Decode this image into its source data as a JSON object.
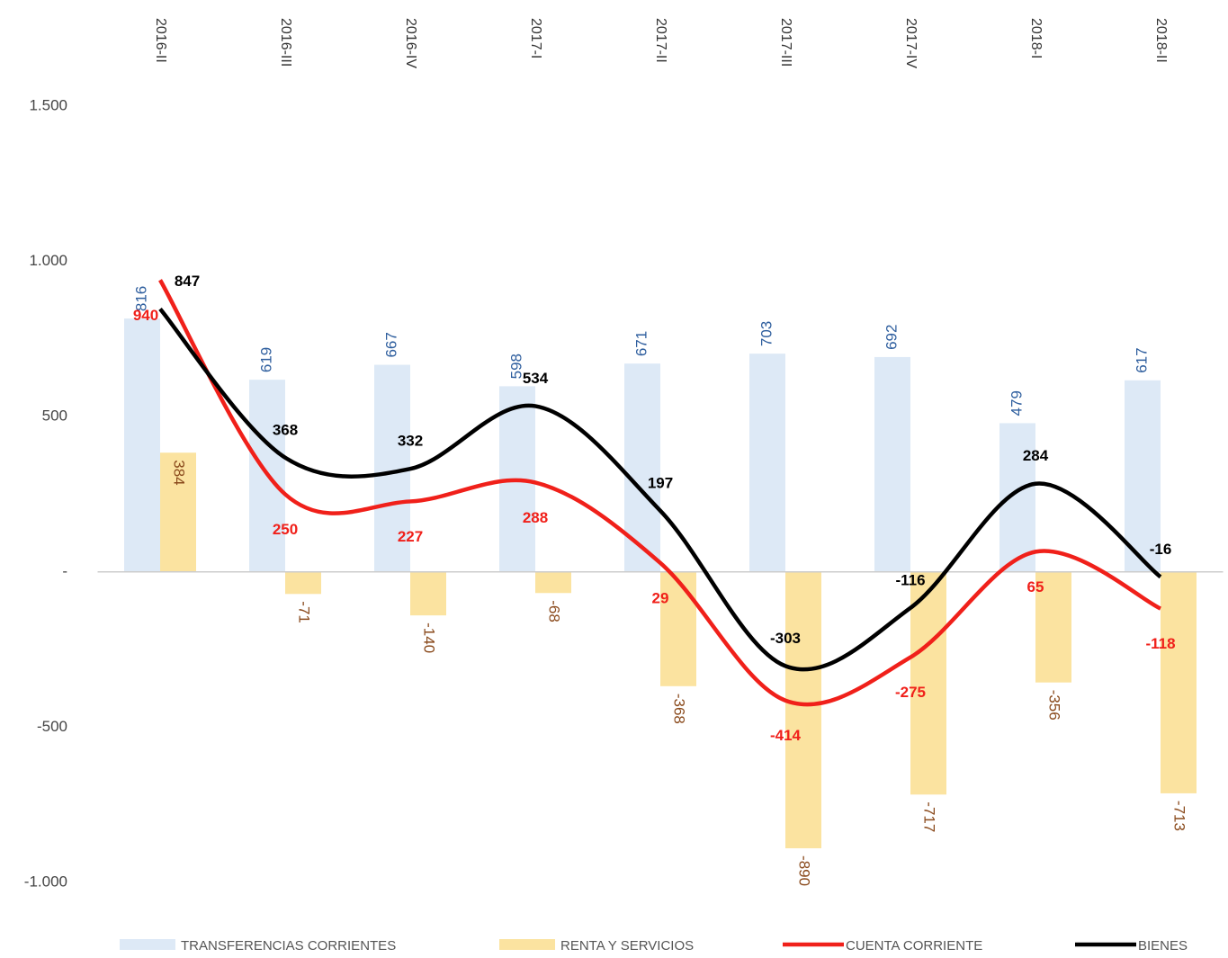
{
  "chart_data": {
    "type": "bar-line",
    "categories": [
      "2016-II",
      "2016-III",
      "2016-IV",
      "2017-I",
      "2017-II",
      "2017-III",
      "2017-IV",
      "2018-I",
      "2018-II"
    ],
    "series": [
      {
        "name": "TRANSFERENCIAS CORRIENTES",
        "type": "bar",
        "color": "#dde9f6",
        "label_color": "#2e5e9e",
        "values": [
          816,
          619,
          667,
          598,
          671,
          703,
          692,
          479,
          617
        ]
      },
      {
        "name": "RENTA Y SERVICIOS",
        "type": "bar",
        "color": "#fbe3a0",
        "label_color": "#8a4a1c",
        "values": [
          384,
          -71,
          -140,
          -68,
          -368,
          -890,
          -717,
          -356,
          -713
        ]
      },
      {
        "name": "CUENTA CORRIENTE",
        "type": "line",
        "color": "#f0201a",
        "label_color": "#f0201a",
        "values": [
          940,
          250,
          227,
          288,
          29,
          -414,
          -275,
          65,
          -118
        ]
      },
      {
        "name": "BIENES",
        "type": "line",
        "color": "#000000",
        "label_color": "#000000",
        "values": [
          847,
          368,
          332,
          534,
          197,
          -303,
          -116,
          284,
          -16
        ]
      }
    ],
    "ylim": [
      -1000,
      1500
    ],
    "yticks": [
      {
        "value": -1000,
        "label": "-1.000"
      },
      -500,
      {
        "value": 0,
        "label": "-"
      },
      500,
      {
        "value": 1000,
        "label": "1.000"
      },
      {
        "value": 1500,
        "label": "1.500"
      }
    ],
    "grid": false
  }
}
